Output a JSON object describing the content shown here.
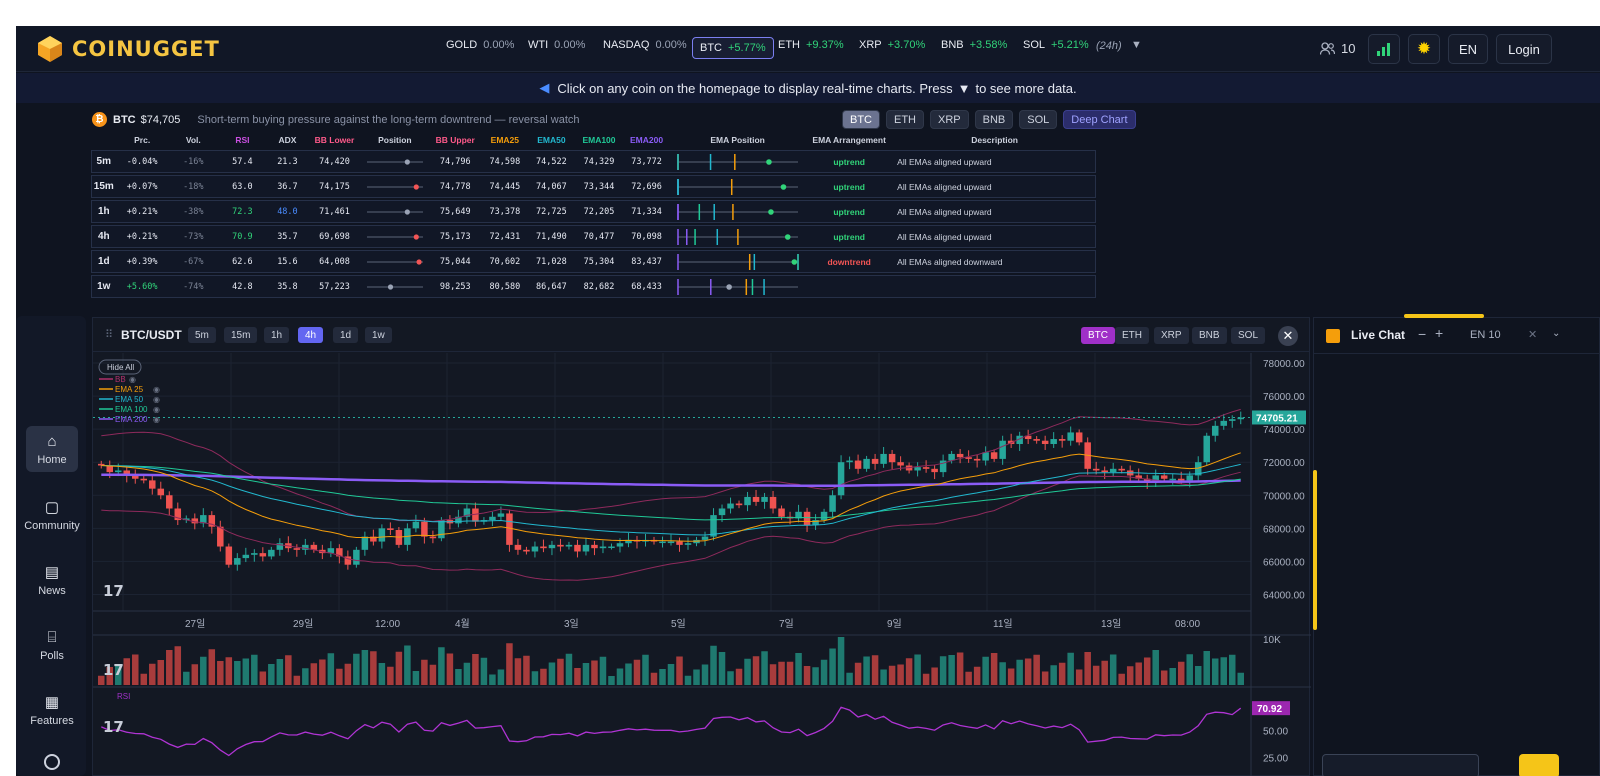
{
  "app": {
    "name": "COINUGGET"
  },
  "tickers": [
    {
      "sym": "GOLD",
      "pct": "0.00%",
      "up": false
    },
    {
      "sym": "WTI",
      "pct": "0.00%",
      "up": false
    },
    {
      "sym": "NASDAQ",
      "pct": "0.00%",
      "up": false
    },
    {
      "sym": "BTC",
      "pct": "+5.77%",
      "up": true
    },
    {
      "sym": "ETH",
      "pct": "+9.37%",
      "up": true
    },
    {
      "sym": "XRP",
      "pct": "+3.70%",
      "up": true
    },
    {
      "sym": "BNB",
      "pct": "+3.58%",
      "up": true
    },
    {
      "sym": "SOL",
      "pct": "+5.21%",
      "up": true
    }
  ],
  "ticker_period": "(24h)",
  "header_right": {
    "users": "10",
    "lang": "EN",
    "login": "Login"
  },
  "notice": {
    "pre": "Click on any coin on the homepage to display real-time charts.  Press",
    "post": "to see more data."
  },
  "summary": {
    "coin": "BTC",
    "price": "$74,705",
    "desc": "Short-term buying pressure against the long-term downtrend — reversal watch"
  },
  "coin_tabs": [
    "BTC",
    "ETH",
    "XRP",
    "BNB",
    "SOL"
  ],
  "deep_chart": "Deep Chart",
  "table": {
    "headers": [
      "",
      "Prc.",
      "Vol.",
      "RSI",
      "ADX",
      "BB Lower",
      "Position",
      "BB Upper",
      "EMA25",
      "EMA50",
      "EMA100",
      "EMA200",
      "EMA Position",
      "EMA Arrangement",
      "Description"
    ],
    "rows": [
      {
        "tf": "5m",
        "prc": "-0.04%",
        "vol": "-16%",
        "rsi": "57.4",
        "adx": "21.3",
        "bbl": "74,420",
        "pos": 0.72,
        "bbu": "74,796",
        "e25": "74,598",
        "e50": "74,522",
        "e100": "74,329",
        "e200": "73,772",
        "arr": "uptrend",
        "desc": "All EMAs aligned upward"
      },
      {
        "tf": "15m",
        "prc": "+0.07%",
        "vol": "-18%",
        "rsi": "63.0",
        "adx": "36.7",
        "bbl": "74,175",
        "pos": 0.88,
        "bbu": "74,778",
        "e25": "74,445",
        "e50": "74,067",
        "e100": "73,344",
        "e200": "72,696",
        "arr": "uptrend",
        "desc": "All EMAs aligned upward"
      },
      {
        "tf": "1h",
        "prc": "+0.21%",
        "vol": "-38%",
        "rsi": "72.3",
        "adx": "48.0",
        "bbl": "71,461",
        "pos": 0.72,
        "bbu": "75,649",
        "e25": "73,378",
        "e50": "72,725",
        "e100": "72,205",
        "e200": "71,334",
        "arr": "uptrend",
        "desc": "All EMAs aligned upward"
      },
      {
        "tf": "4h",
        "prc": "+0.21%",
        "vol": "-73%",
        "rsi": "70.9",
        "adx": "35.7",
        "bbl": "69,698",
        "pos": 0.88,
        "bbu": "75,173",
        "e25": "72,431",
        "e50": "71,490",
        "e100": "70,477",
        "e200": "70,098",
        "arr": "uptrend",
        "desc": "All EMAs aligned upward"
      },
      {
        "tf": "1d",
        "prc": "+0.39%",
        "vol": "-67%",
        "rsi": "62.6",
        "adx": "15.6",
        "bbl": "64,008",
        "pos": 0.93,
        "bbu": "75,044",
        "e25": "70,602",
        "e50": "71,028",
        "e100": "75,304",
        "e200": "83,437",
        "arr": "downtrend",
        "desc": "All EMAs aligned downward"
      },
      {
        "tf": "1w",
        "prc": "+5.60%",
        "vol": "-74%",
        "rsi": "42.8",
        "adx": "35.8",
        "bbl": "57,223",
        "pos": 0.42,
        "bbu": "98,253",
        "e25": "80,580",
        "e50": "86,647",
        "e100": "82,682",
        "e200": "68,433",
        "arr": "",
        "desc": ""
      }
    ]
  },
  "sidebar": [
    {
      "label": "Home",
      "icon": "home-icon"
    },
    {
      "label": "Community",
      "icon": "chat-icon"
    },
    {
      "label": "News",
      "icon": "newspaper-icon"
    },
    {
      "label": "Polls",
      "icon": "poll-icon"
    },
    {
      "label": "Features",
      "icon": "grid-icon"
    }
  ],
  "chart": {
    "pair": "BTC/USDT",
    "timeframes": [
      "5m",
      "15m",
      "1h",
      "4h",
      "1d",
      "1w"
    ],
    "active_tf": "4h",
    "coins": [
      "BTC",
      "ETH",
      "XRP",
      "BNB",
      "SOL"
    ],
    "hide_all": "Hide All",
    "legend": [
      {
        "name": "BB",
        "color": "#b0306a"
      },
      {
        "name": "EMA 25",
        "color": "#f59e0b"
      },
      {
        "name": "EMA 50",
        "color": "#22b8cf"
      },
      {
        "name": "EMA 100",
        "color": "#20c997"
      },
      {
        "name": "EMA 200",
        "color": "#8b5cf6"
      }
    ],
    "price_ticks": [
      "78000.00",
      "76000.00",
      "74000.00",
      "72000.00",
      "70000.00",
      "68000.00",
      "66000.00",
      "64000.00"
    ],
    "last_price": "74705.21",
    "date_ticks": [
      "27일",
      "29일",
      "12:00",
      "4월",
      "3일",
      "5일",
      "7일",
      "9일",
      "11일",
      "13일",
      "08:00"
    ],
    "volume_label": "10K",
    "rsi_label": "RSI",
    "rsi_value": "70.92",
    "rsi_ticks": [
      "50.00",
      "25.00"
    ]
  },
  "chat": {
    "title": "Live Chat",
    "lang": "EN",
    "count": "10"
  }
}
